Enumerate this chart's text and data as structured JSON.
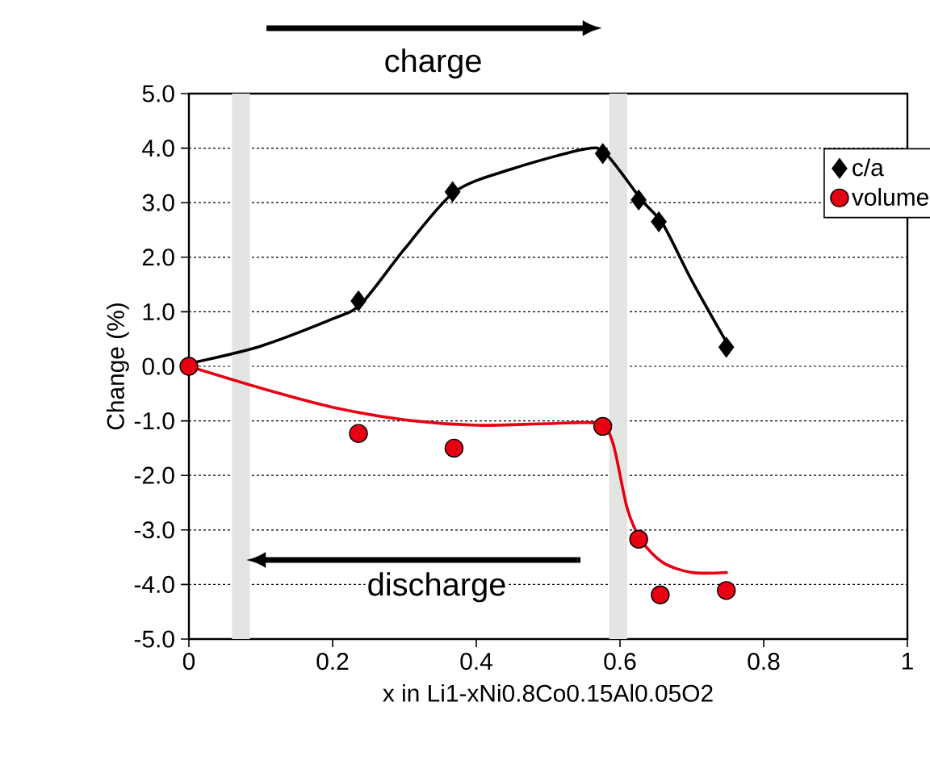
{
  "chart_data": {
    "type": "scatter",
    "xlabel": "x in Li1-xNi0.8Co0.15Al0.05O2",
    "ylabel": "Change (%)",
    "annotations": [
      "charge",
      "discharge"
    ],
    "xlim": [
      0,
      1
    ],
    "xticks": [
      0,
      0.2,
      0.4,
      0.6,
      0.8,
      1
    ],
    "ylim": [
      -5,
      5
    ],
    "yticks": [
      {
        "value": 5,
        "label": "5.0"
      },
      {
        "value": 4,
        "label": "4.0"
      },
      {
        "value": 3,
        "label": "3.0"
      },
      {
        "value": 2,
        "label": "2.0"
      },
      {
        "value": 1,
        "label": "1.0"
      },
      {
        "value": 0,
        "label": "0.0"
      },
      {
        "value": -1,
        "label": "-1.0"
      },
      {
        "value": -2,
        "label": "-2.0"
      },
      {
        "value": -3,
        "label": "-3.0"
      },
      {
        "value": -4,
        "label": "-4.0"
      },
      {
        "value": -5,
        "label": "-5.0"
      }
    ],
    "grid": "y",
    "legend": "top right",
    "bands": [
      {
        "axis": "x",
        "from": 0.06,
        "to": 0.085,
        "color": "#e3e5e3"
      },
      {
        "axis": "x",
        "from": 0.585,
        "to": 0.61,
        "color": "#e3e5e3"
      }
    ],
    "series": [
      {
        "type": "line",
        "color": "#000000",
        "x": [
          0,
          0.1,
          0.2,
          0.24,
          0.3,
          0.37,
          0.45,
          0.55,
          0.58,
          0.63,
          0.66,
          0.7,
          0.75
        ],
        "values": [
          0.05,
          0.37,
          0.87,
          1.15,
          2.15,
          3.2,
          3.62,
          3.98,
          3.9,
          3.05,
          2.6,
          1.57,
          0.4
        ]
      },
      {
        "type": "line",
        "color": "#e60012",
        "x": [
          0,
          0.1,
          0.2,
          0.3,
          0.4,
          0.5,
          0.57,
          0.59,
          0.61,
          0.63,
          0.66,
          0.7,
          0.75
        ],
        "values": [
          0,
          -0.4,
          -0.75,
          -0.98,
          -1.08,
          -1.05,
          -1.05,
          -1.4,
          -2.6,
          -3.2,
          -3.6,
          -3.78,
          -3.78
        ]
      },
      {
        "name": "c/a",
        "marker": "diamond",
        "color": "#000000",
        "x": [
          0.236,
          0.367,
          0.576,
          0.626,
          0.654,
          0.748
        ],
        "values": [
          1.2,
          3.2,
          3.9,
          3.05,
          2.65,
          0.35
        ]
      },
      {
        "name": "volume",
        "marker": "circle",
        "color": "#e60012",
        "x": [
          0,
          0.236,
          0.369,
          0.576,
          0.626,
          0.656,
          0.748
        ],
        "values": [
          0,
          -1.23,
          -1.5,
          -1.1,
          -3.17,
          -4.19,
          -4.11
        ]
      }
    ]
  }
}
